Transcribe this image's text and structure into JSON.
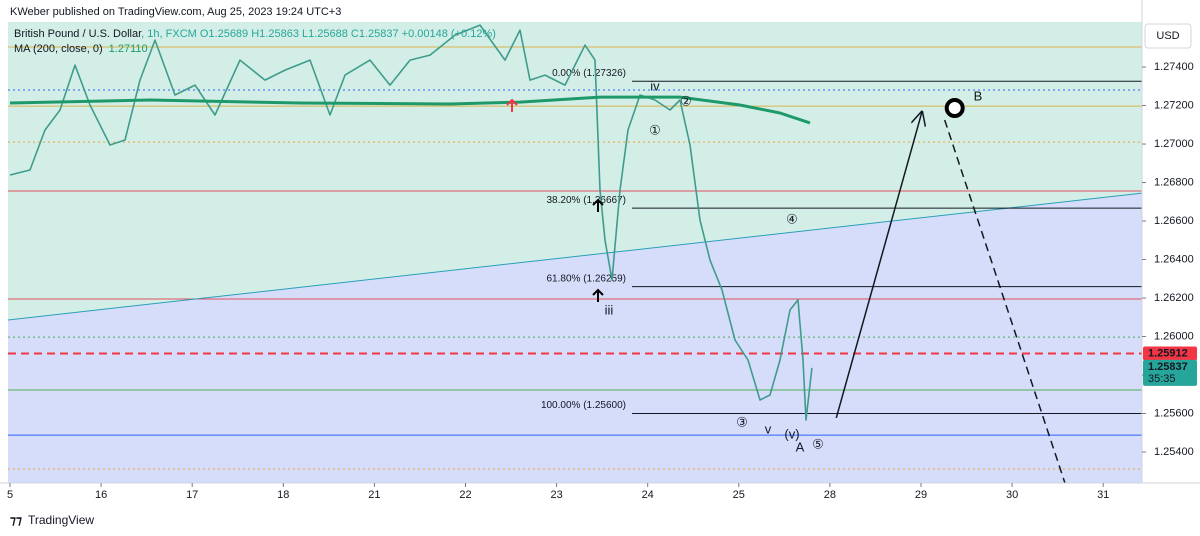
{
  "chart_data": {
    "type": "line",
    "publisher": "KWeber published on TradingView.com, Aug 25, 2023 19:24 UTC+3",
    "currency": "USD",
    "footer": "TradingView",
    "xlim": [
      -0.022,
      12.426
    ],
    "ylim": [
      1.25239,
      1.27634
    ],
    "xticks": [
      {
        "value": 0,
        "label": "5"
      },
      {
        "value": 1,
        "label": "16"
      },
      {
        "value": 2,
        "label": "17"
      },
      {
        "value": 3,
        "label": "18"
      },
      {
        "value": 4,
        "label": "21"
      },
      {
        "value": 5,
        "label": "22"
      },
      {
        "value": 6,
        "label": "23"
      },
      {
        "value": 7,
        "label": "24"
      },
      {
        "value": 8,
        "label": "25"
      },
      {
        "value": 9,
        "label": "28"
      },
      {
        "value": 10,
        "label": "29"
      },
      {
        "value": 11,
        "label": "30"
      },
      {
        "value": 12,
        "label": "31"
      }
    ],
    "yticks": [
      {
        "value": 1.254,
        "label": "1.25400"
      },
      {
        "value": 1.256,
        "label": "1.25600"
      },
      {
        "value": 1.258,
        "label": "1.25800"
      },
      {
        "value": 1.26,
        "label": "1.26000"
      },
      {
        "value": 1.262,
        "label": "1.26200"
      },
      {
        "value": 1.264,
        "label": "1.26400"
      },
      {
        "value": 1.266,
        "label": "1.26600"
      },
      {
        "value": 1.268,
        "label": "1.26800"
      },
      {
        "value": 1.27,
        "label": "1.27000"
      },
      {
        "value": 1.272,
        "label": "1.27200"
      },
      {
        "value": 1.274,
        "label": "1.27400"
      }
    ],
    "series": [
      {
        "name": "British Pound / U.S. Dollar",
        "legend_detail": ", 1h, FXCM  O1.25689  H1.25863  L1.25688  C1.25837  +0.00148 (+0.12%)",
        "color": "#3f9c8c",
        "x": [
          0,
          0.22,
          0.384,
          0.549,
          0.714,
          0.878,
          1.098,
          1.262,
          1.427,
          1.592,
          1.811,
          2.031,
          2.25,
          2.525,
          2.799,
          3.019,
          3.293,
          3.513,
          3.677,
          3.952,
          4.171,
          4.391,
          4.61,
          4.885,
          5.159,
          5.434,
          5.598,
          5.708,
          5.873,
          6.092,
          6.312,
          6.422,
          6.476,
          6.531,
          6.608,
          6.696,
          6.784,
          6.916,
          7.08,
          7.245,
          7.355,
          7.464,
          7.574,
          7.684,
          7.816,
          7.958,
          8.101,
          8.233,
          8.342,
          8.452,
          8.562,
          8.65,
          8.705,
          8.738,
          8.803
        ],
        "values": [
          1.26839,
          1.26865,
          1.27073,
          1.27177,
          1.2741,
          1.27203,
          1.26995,
          1.27021,
          1.27332,
          1.2754,
          1.27255,
          1.27306,
          1.27151,
          1.27436,
          1.27332,
          1.27384,
          1.27436,
          1.27151,
          1.27358,
          1.27436,
          1.27306,
          1.27436,
          1.27462,
          1.27566,
          1.27618,
          1.27436,
          1.27592,
          1.27332,
          1.27358,
          1.27306,
          1.27514,
          1.27436,
          1.26761,
          1.26501,
          1.26294,
          1.26761,
          1.27073,
          1.27255,
          1.27229,
          1.27177,
          1.27229,
          1.26995,
          1.26605,
          1.26397,
          1.26242,
          1.25982,
          1.25878,
          1.2567,
          1.25696,
          1.25878,
          1.26138,
          1.2619,
          1.25878,
          1.25566,
          1.25837
        ]
      },
      {
        "name": "MA (200, close, 0)",
        "legend_detail": "1.27110",
        "color": "#1e9a6a",
        "x": [
          0,
          1.537,
          3.183,
          4.83,
          5.598,
          6.476,
          7.355,
          8.013,
          8.452,
          8.782
        ],
        "values": [
          1.27213,
          1.27229,
          1.27213,
          1.27208,
          1.27218,
          1.27244,
          1.27244,
          1.27203,
          1.27161,
          1.2711
        ]
      }
    ],
    "hlines": [
      {
        "value": 1.27504,
        "color": "#d9b44a",
        "style": "solid"
      },
      {
        "value": 1.27281,
        "color": "#2962ff",
        "style": "dotted"
      },
      {
        "value": 1.27197,
        "color": "#d9b44a",
        "style": "solid"
      },
      {
        "value": 1.2701,
        "color": "#f0a030",
        "style": "dotted"
      },
      {
        "value": 1.26756,
        "color": "#e0505a",
        "style": "solid"
      },
      {
        "value": 1.26195,
        "color": "#e0505a",
        "style": "solid"
      },
      {
        "value": 1.25997,
        "color": "#4caf50",
        "style": "dotted"
      },
      {
        "value": 1.25912,
        "color": "#f23645",
        "style": "dashed"
      },
      {
        "value": 1.25722,
        "color": "#4caf50",
        "style": "solid"
      },
      {
        "value": 1.25488,
        "color": "#2962ff",
        "style": "solid"
      },
      {
        "value": 1.25312,
        "color": "#f0a030",
        "style": "dotted"
      }
    ],
    "fib_start": 6.828,
    "levels": [
      {
        "label": "0.00% (1.27326)",
        "value": 1.27326
      },
      {
        "label": "38.20% (1.26667)",
        "value": 1.26667
      },
      {
        "label": "61.80% (1.26259)",
        "value": 1.26259
      },
      {
        "label": "100.00% (1.25600)",
        "value": 1.256
      }
    ],
    "trendline": {
      "color": "#2a9fb8",
      "x": [
        -0.022,
        12.426
      ],
      "values": [
        1.26086,
        1.26745
      ]
    },
    "projections": [
      {
        "style": "solid",
        "x": [
          9.07,
          10.01
        ],
        "values": [
          1.25577,
          1.27166
        ]
      },
      {
        "style": "dashed",
        "x": [
          10.26,
          11.58
        ],
        "values": [
          1.27125,
          1.25239
        ]
      }
    ],
    "target": {
      "x": 10.37,
      "price": 1.27187
    },
    "annotations": [
      {
        "text": "iv",
        "x": 7.08,
        "price": 1.27296,
        "color": "#131722"
      },
      {
        "text": "iii",
        "x": 6.575,
        "price": 1.26132,
        "color": "#131722"
      },
      {
        "text": "v",
        "x": 8.32,
        "price": 1.25514,
        "color": "#131722"
      },
      {
        "text": "(v)",
        "x": 8.584,
        "price": 1.25488,
        "color": "#131722"
      },
      {
        "text": "A",
        "x": 8.672,
        "price": 1.25421,
        "color": "#131722"
      },
      {
        "text": "B",
        "x": 10.626,
        "price": 1.27244,
        "color": "#131722"
      },
      {
        "text": "①",
        "x": 7.08,
        "price": 1.27068,
        "color": "#f23645"
      },
      {
        "text": "②",
        "x": 7.42,
        "price": 1.27218,
        "color": "#f23645"
      },
      {
        "text": "③",
        "x": 8.035,
        "price": 1.25551,
        "color": "#f23645"
      },
      {
        "text": "④",
        "x": 8.584,
        "price": 1.26605,
        "color": "#f23645"
      },
      {
        "text": "⑤",
        "x": 8.869,
        "price": 1.25436,
        "color": "#f23645"
      }
    ],
    "price_tags": [
      {
        "value": 1.25912,
        "label": "1.25912",
        "color": "#f23645"
      },
      {
        "value": 1.25837,
        "label": "1.25837",
        "timer": "35:35",
        "color": "#26a69a"
      }
    ]
  }
}
